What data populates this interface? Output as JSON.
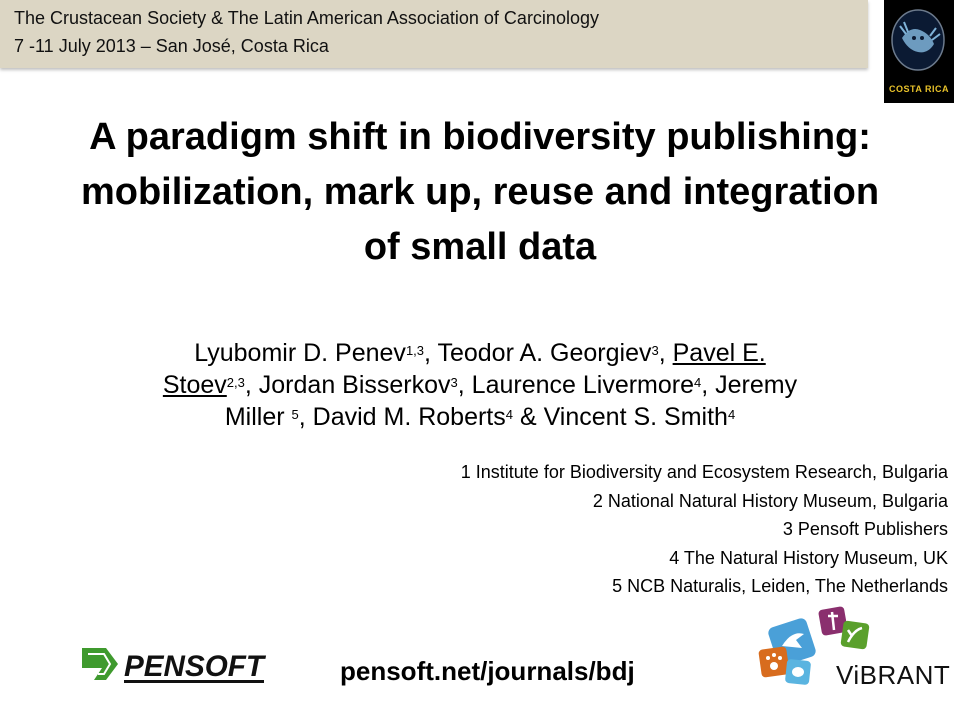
{
  "banner": {
    "line1": "The Crustacean Society & The Latin American Association of Carcinology",
    "line2": "7 -11 July 2013 – San José, Costa Rica"
  },
  "conference_logo": {
    "label": "COSTA RICA",
    "icon": "crab-logo-icon"
  },
  "title": {
    "line1": "A paradigm shift in biodiversity publishing:",
    "line2": "mobilization, mark up, reuse and integration",
    "line3": "of small data"
  },
  "authors": [
    {
      "name": "Lyubomir D. Penev",
      "sup": "1,3"
    },
    {
      "name": "Teodor A. Georgiev",
      "sup": "3"
    },
    {
      "name": "Pavel E. Stoev",
      "sup": "2,3"
    },
    {
      "name": "Jordan Bisserkov",
      "sup": "3"
    },
    {
      "name": "Laurence Livermore",
      "sup": "4"
    },
    {
      "name": "Jeremy Miller ",
      "sup": "5"
    },
    {
      "name": "David M. Roberts",
      "sup": "4"
    },
    {
      "name": "Vincent S. Smith",
      "sup": "4"
    }
  ],
  "authors_split": {
    "pavel_part1": "Pavel E.",
    "pavel_part2": "Stoev",
    "sep_comma": ", ",
    "sep_amp": " & "
  },
  "affiliations": [
    "1 Institute for Biodiversity and Ecosystem Research, Bulgaria",
    "2 National Natural History Museum, Bulgaria",
    "3 Pensoft Publishers",
    "4 The Natural History Museum, UK",
    "5 NCB Naturalis, Leiden, The Netherlands"
  ],
  "pensoft_logo": {
    "label": "PENSOFT",
    "icon": "pensoft-arrow-icon"
  },
  "url": "pensoft.net/journals/bdj",
  "vibrant": {
    "label": "ViBRANT",
    "tiles": [
      {
        "icon": "bird-icon",
        "color": "#4aa0d8"
      },
      {
        "icon": "insect-icon",
        "color": "#8a2f6e"
      },
      {
        "icon": "plant-icon",
        "color": "#5aa02c"
      },
      {
        "icon": "paw-icon",
        "color": "#d86c1e"
      },
      {
        "icon": "microbe-icon",
        "color": "#5ab4e0"
      }
    ]
  },
  "colors": {
    "banner_bg": "#dcd6c4",
    "logo_gold": "#e8c22a"
  }
}
